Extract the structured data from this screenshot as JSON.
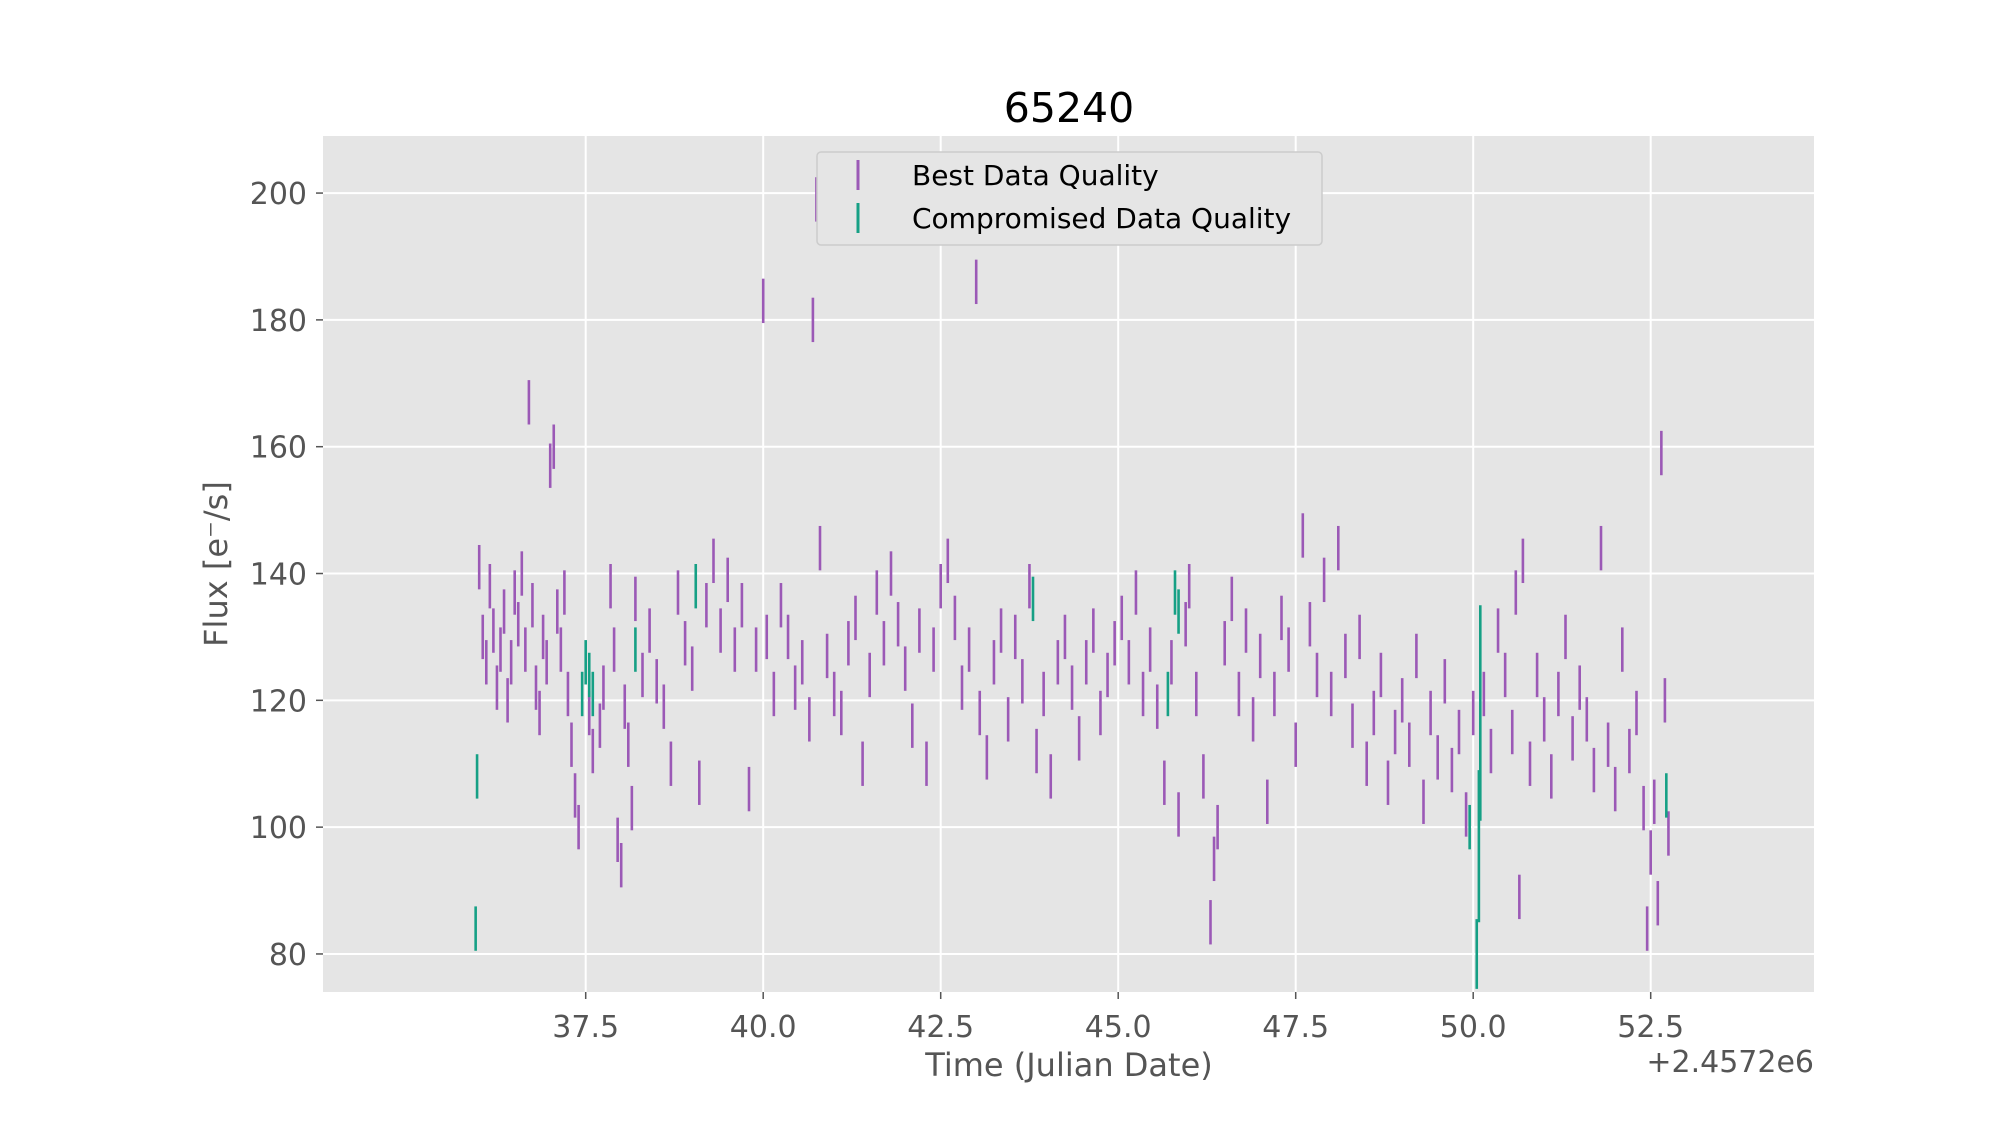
{
  "chart_data": {
    "type": "scatter",
    "title": "65240",
    "xlabel": "Time (Julian Date)",
    "ylabel": "Flux [e⁻/s]",
    "x_offset_label": "+2.4572e6",
    "xlim": [
      33.8,
      54.8
    ],
    "ylim": [
      74,
      209
    ],
    "xticks": [
      37.5,
      40.0,
      42.5,
      45.0,
      47.5,
      50.0,
      52.5
    ],
    "xtick_labels": [
      "37.5",
      "40.0",
      "42.5",
      "45.0",
      "47.5",
      "50.0",
      "52.5"
    ],
    "yticks": [
      80,
      100,
      120,
      140,
      160,
      180,
      200
    ],
    "ytick_labels": [
      "80",
      "100",
      "120",
      "140",
      "160",
      "180",
      "200"
    ],
    "grid": true,
    "legend_position": "upper center",
    "series": [
      {
        "name": "Best Data Quality",
        "color": "#9b59b6",
        "error": 3.5,
        "points": [
          [
            36.0,
            141
          ],
          [
            36.05,
            130
          ],
          [
            36.1,
            126
          ],
          [
            36.15,
            138
          ],
          [
            36.2,
            131
          ],
          [
            36.25,
            122
          ],
          [
            36.3,
            128
          ],
          [
            36.35,
            134
          ],
          [
            36.4,
            120
          ],
          [
            36.45,
            126
          ],
          [
            36.5,
            137
          ],
          [
            36.55,
            132
          ],
          [
            36.6,
            140
          ],
          [
            36.65,
            128
          ],
          [
            36.7,
            167
          ],
          [
            36.75,
            135
          ],
          [
            36.8,
            122
          ],
          [
            36.85,
            118
          ],
          [
            36.9,
            130
          ],
          [
            36.95,
            126
          ],
          [
            37.0,
            157
          ],
          [
            37.05,
            160
          ],
          [
            37.1,
            134
          ],
          [
            37.15,
            128
          ],
          [
            37.2,
            137
          ],
          [
            37.25,
            121
          ],
          [
            37.3,
            113
          ],
          [
            37.35,
            105
          ],
          [
            37.4,
            100
          ],
          [
            37.55,
            118
          ],
          [
            37.6,
            112
          ],
          [
            37.7,
            116
          ],
          [
            37.75,
            122
          ],
          [
            37.85,
            138
          ],
          [
            37.9,
            128
          ],
          [
            37.95,
            98
          ],
          [
            38.0,
            94
          ],
          [
            38.05,
            119
          ],
          [
            38.1,
            113
          ],
          [
            38.15,
            103
          ],
          [
            38.2,
            136
          ],
          [
            38.3,
            124
          ],
          [
            38.4,
            131
          ],
          [
            38.5,
            123
          ],
          [
            38.6,
            119
          ],
          [
            38.7,
            110
          ],
          [
            38.8,
            137
          ],
          [
            38.9,
            129
          ],
          [
            39.0,
            125
          ],
          [
            39.1,
            107
          ],
          [
            39.2,
            135
          ],
          [
            39.3,
            142
          ],
          [
            39.4,
            131
          ],
          [
            39.5,
            139
          ],
          [
            39.6,
            128
          ],
          [
            39.7,
            135
          ],
          [
            39.8,
            106
          ],
          [
            39.9,
            128
          ],
          [
            40.0,
            183
          ],
          [
            40.05,
            130
          ],
          [
            40.15,
            121
          ],
          [
            40.25,
            135
          ],
          [
            40.35,
            130
          ],
          [
            40.45,
            122
          ],
          [
            40.55,
            126
          ],
          [
            40.65,
            117
          ],
          [
            40.7,
            180
          ],
          [
            40.75,
            199
          ],
          [
            40.8,
            144
          ],
          [
            40.9,
            127
          ],
          [
            41.0,
            121
          ],
          [
            41.1,
            118
          ],
          [
            41.2,
            129
          ],
          [
            41.3,
            133
          ],
          [
            41.4,
            110
          ],
          [
            41.5,
            124
          ],
          [
            41.6,
            137
          ],
          [
            41.7,
            129
          ],
          [
            41.8,
            140
          ],
          [
            41.9,
            132
          ],
          [
            42.0,
            125
          ],
          [
            42.1,
            116
          ],
          [
            42.2,
            131
          ],
          [
            42.3,
            110
          ],
          [
            42.4,
            128
          ],
          [
            42.5,
            138
          ],
          [
            42.6,
            142
          ],
          [
            42.7,
            133
          ],
          [
            42.8,
            122
          ],
          [
            42.9,
            128
          ],
          [
            43.0,
            186
          ],
          [
            43.05,
            118
          ],
          [
            43.15,
            111
          ],
          [
            43.25,
            126
          ],
          [
            43.35,
            131
          ],
          [
            43.45,
            117
          ],
          [
            43.55,
            130
          ],
          [
            43.65,
            123
          ],
          [
            43.75,
            138
          ],
          [
            43.85,
            112
          ],
          [
            43.95,
            121
          ],
          [
            44.05,
            108
          ],
          [
            44.15,
            126
          ],
          [
            44.25,
            130
          ],
          [
            44.35,
            122
          ],
          [
            44.45,
            114
          ],
          [
            44.55,
            126
          ],
          [
            44.65,
            131
          ],
          [
            44.75,
            118
          ],
          [
            44.85,
            124
          ],
          [
            44.95,
            129
          ],
          [
            45.05,
            133
          ],
          [
            45.15,
            126
          ],
          [
            45.25,
            137
          ],
          [
            45.35,
            121
          ],
          [
            45.45,
            128
          ],
          [
            45.55,
            119
          ],
          [
            45.65,
            107
          ],
          [
            45.75,
            126
          ],
          [
            45.85,
            102
          ],
          [
            45.95,
            132
          ],
          [
            46.0,
            138
          ],
          [
            46.1,
            121
          ],
          [
            46.2,
            108
          ],
          [
            46.3,
            85
          ],
          [
            46.35,
            95
          ],
          [
            46.4,
            100
          ],
          [
            46.5,
            129
          ],
          [
            46.6,
            136
          ],
          [
            46.7,
            121
          ],
          [
            46.8,
            131
          ],
          [
            46.9,
            117
          ],
          [
            47.0,
            127
          ],
          [
            47.1,
            104
          ],
          [
            47.2,
            121
          ],
          [
            47.3,
            133
          ],
          [
            47.4,
            128
          ],
          [
            47.5,
            113
          ],
          [
            47.6,
            146
          ],
          [
            47.7,
            132
          ],
          [
            47.8,
            124
          ],
          [
            47.9,
            139
          ],
          [
            48.0,
            121
          ],
          [
            48.1,
            144
          ],
          [
            48.2,
            127
          ],
          [
            48.3,
            116
          ],
          [
            48.4,
            130
          ],
          [
            48.5,
            110
          ],
          [
            48.6,
            118
          ],
          [
            48.7,
            124
          ],
          [
            48.8,
            107
          ],
          [
            48.9,
            115
          ],
          [
            49.0,
            120
          ],
          [
            49.1,
            113
          ],
          [
            49.2,
            127
          ],
          [
            49.3,
            104
          ],
          [
            49.4,
            118
          ],
          [
            49.5,
            111
          ],
          [
            49.6,
            123
          ],
          [
            49.7,
            109
          ],
          [
            49.8,
            115
          ],
          [
            49.9,
            102
          ],
          [
            50.0,
            118
          ],
          [
            50.15,
            121
          ],
          [
            50.25,
            112
          ],
          [
            50.35,
            131
          ],
          [
            50.45,
            124
          ],
          [
            50.55,
            115
          ],
          [
            50.6,
            137
          ],
          [
            50.65,
            89
          ],
          [
            50.7,
            142
          ],
          [
            50.8,
            110
          ],
          [
            50.9,
            124
          ],
          [
            51.0,
            117
          ],
          [
            51.1,
            108
          ],
          [
            51.2,
            121
          ],
          [
            51.3,
            130
          ],
          [
            51.4,
            114
          ],
          [
            51.5,
            122
          ],
          [
            51.6,
            117
          ],
          [
            51.7,
            109
          ],
          [
            51.8,
            144
          ],
          [
            51.9,
            113
          ],
          [
            52.0,
            106
          ],
          [
            52.1,
            128
          ],
          [
            52.2,
            112
          ],
          [
            52.3,
            118
          ],
          [
            52.4,
            103
          ],
          [
            52.45,
            84
          ],
          [
            52.5,
            96
          ],
          [
            52.55,
            104
          ],
          [
            52.6,
            88
          ],
          [
            52.65,
            159
          ],
          [
            52.7,
            120
          ],
          [
            52.75,
            99
          ]
        ]
      },
      {
        "name": "Compromised Data Quality",
        "color": "#16a085",
        "error": 3.5,
        "points": [
          [
            35.95,
            84
          ],
          [
            35.97,
            108
          ],
          [
            37.45,
            121
          ],
          [
            37.5,
            126
          ],
          [
            37.55,
            124
          ],
          [
            37.6,
            121
          ],
          [
            38.2,
            128
          ],
          [
            39.05,
            138
          ],
          [
            43.8,
            136
          ],
          [
            45.7,
            121
          ],
          [
            45.8,
            137
          ],
          [
            45.85,
            134
          ],
          [
            49.95,
            100
          ],
          [
            50.05,
            80
          ],
          [
            50.08,
            97
          ],
          [
            50.1,
            118
          ],
          [
            52.72,
            105
          ]
        ],
        "error_overrides": {
          "50.05": 5.5,
          "50.08": 12,
          "50.1": 17
        }
      }
    ]
  }
}
